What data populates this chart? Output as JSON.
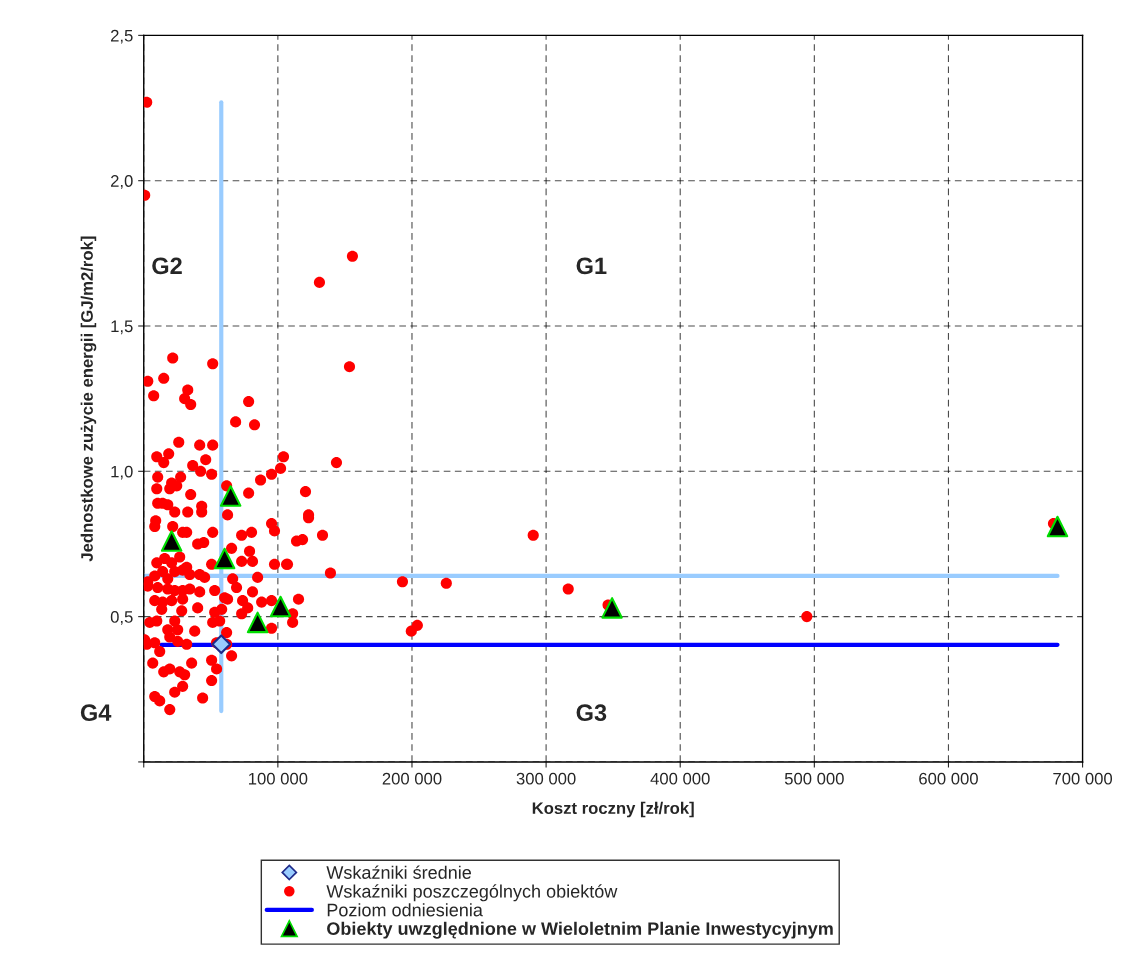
{
  "chart_data": {
    "type": "scatter",
    "xlabel": "Koszt roczny [zł/rok]",
    "ylabel": "Jednostkowe zużycie energii [GJ/m2/rok]",
    "xlim": [
      0,
      700000
    ],
    "xticks": [
      {
        "value": 0,
        "label": null
      },
      {
        "value": 100000,
        "label": "100 000"
      },
      {
        "value": 200000,
        "label": "200 000"
      },
      {
        "value": 300000,
        "label": "300 000"
      },
      {
        "value": 400000,
        "label": "400 000"
      },
      {
        "value": 500000,
        "label": "500 000"
      },
      {
        "value": 600000,
        "label": "600 000"
      },
      {
        "value": 700000,
        "label": "700 000"
      }
    ],
    "ylim": [
      0,
      2.5
    ],
    "yticks": [
      {
        "value": 0,
        "label": null
      },
      {
        "value": 0.5,
        "label": "0,5"
      },
      {
        "value": 1,
        "label": "1,0"
      },
      {
        "value": 1.5,
        "label": "1,5"
      },
      {
        "value": 2,
        "label": "2,0"
      },
      {
        "value": 2.5,
        "label": "2,5"
      }
    ],
    "grid": true,
    "legend": "bottom",
    "annotations": [
      "G1",
      "G2",
      "G3",
      "G4"
    ],
    "series": [
      {
        "type": "line",
        "color": "#99ccff",
        "marker": "none",
        "x": [
          57800,
          57800
        ],
        "values": [
          0.175,
          2.27
        ]
      },
      {
        "type": "line",
        "color": "#99ccff",
        "marker": "none",
        "x": [
          0,
          681300
        ],
        "values": [
          0.64,
          0.64
        ]
      },
      {
        "name": "Wskaźniki średnie",
        "color": "#99ccff",
        "marker": "diamond",
        "x": [
          57800
        ],
        "values": [
          0.405
        ]
      },
      {
        "name": "Wskaźniki poszczególnych obiektów",
        "color": "#ff0000",
        "marker": "circle",
        "x": [
          2200,
          700,
          155600,
          131000,
          153400,
          143700,
          133300,
          139200,
          290400,
          192900,
          225600,
          316500,
          199500,
          204000,
          494400,
          346200,
          678300,
          104200,
          102000,
          120600,
          122900,
          122900,
          113900,
          118400,
          106500,
          111000,
          111000,
          21600,
          51400,
          3000,
          14900,
          32800,
          7400,
          30500,
          35000,
          78200,
          68500,
          82600,
          26100,
          41700,
          51400,
          9700,
          18600,
          14900,
          46200,
          36500,
          42400,
          50600,
          95300,
          87100,
          10400,
          27500,
          20800,
          24600,
          9700,
          19400,
          35000,
          78200,
          61800,
          10400,
          14100,
          17900,
          23100,
          32800,
          43200,
          43200,
          62500,
          8900,
          8200,
          51400,
          95300,
          73000,
          80400,
          29000,
          32000,
          21600,
          97500,
          40200,
          44700,
          65500,
          78900,
          73000,
          81100,
          97500,
          107200,
          9700,
          15600,
          20800,
          26800,
          32000,
          14100,
          23100,
          29000,
          34300,
          8200,
          3000,
          17900,
          41700,
          45400,
          50600,
          84900,
          66300,
          69200,
          3000,
          10400,
          17900,
          23100,
          29000,
          34300,
          41700,
          52900,
          81100,
          8200,
          14100,
          20800,
          29000,
          40200,
          60300,
          62500,
          73700,
          87900,
          95300,
          115400,
          13400,
          28300,
          52900,
          58100,
          73000,
          77500,
          4500,
          9700,
          23100,
          51400,
          56600,
          95300,
          17900,
          25300,
          38000,
          61800,
          700,
          2200,
          8200,
          19400,
          25300,
          32000,
          11900,
          54300,
          61800,
          6700,
          19400,
          26800,
          30500,
          35700,
          50600,
          65500,
          54300,
          50600,
          29000,
          23100,
          8200,
          11900,
          19400,
          43900,
          14900
        ],
        "values": [
          2.27,
          1.95,
          1.74,
          1.65,
          1.36,
          1.03,
          0.78,
          0.65,
          0.78,
          0.62,
          0.615,
          0.595,
          0.45,
          0.47,
          0.5,
          0.54,
          0.82,
          1.05,
          1.01,
          0.93,
          0.85,
          0.84,
          0.76,
          0.765,
          0.68,
          0.51,
          0.48,
          1.39,
          1.37,
          1.31,
          1.32,
          1.28,
          1.26,
          1.25,
          1.23,
          1.24,
          1.17,
          1.16,
          1.1,
          1.09,
          1.09,
          1.05,
          1.06,
          1.03,
          1.04,
          1.02,
          1.0,
          0.99,
          0.99,
          0.97,
          0.98,
          0.98,
          0.96,
          0.95,
          0.94,
          0.94,
          0.92,
          0.925,
          0.95,
          0.89,
          0.89,
          0.885,
          0.86,
          0.86,
          0.88,
          0.86,
          0.85,
          0.83,
          0.81,
          0.79,
          0.82,
          0.78,
          0.79,
          0.79,
          0.79,
          0.81,
          0.795,
          0.75,
          0.755,
          0.735,
          0.725,
          0.69,
          0.69,
          0.68,
          0.68,
          0.685,
          0.7,
          0.685,
          0.705,
          0.67,
          0.655,
          0.655,
          0.66,
          0.645,
          0.64,
          0.62,
          0.63,
          0.645,
          0.635,
          0.68,
          0.635,
          0.63,
          0.6,
          0.605,
          0.6,
          0.595,
          0.59,
          0.59,
          0.595,
          0.585,
          0.59,
          0.585,
          0.555,
          0.55,
          0.555,
          0.56,
          0.53,
          0.565,
          0.56,
          0.555,
          0.55,
          0.555,
          0.56,
          0.525,
          0.52,
          0.515,
          0.525,
          0.51,
          0.53,
          0.48,
          0.485,
          0.485,
          0.48,
          0.485,
          0.46,
          0.455,
          0.455,
          0.45,
          0.445,
          0.42,
          0.405,
          0.41,
          0.43,
          0.415,
          0.405,
          0.38,
          0.41,
          0.405,
          0.34,
          0.32,
          0.31,
          0.3,
          0.34,
          0.35,
          0.365,
          0.32,
          0.28,
          0.26,
          0.24,
          0.225,
          0.21,
          0.18,
          0.22,
          0.31
        ]
      },
      {
        "type": "line",
        "name": "Poziom odniesienia",
        "color": "#0000ff",
        "marker": "none",
        "x": [
          13200,
          681300
        ],
        "values": [
          0.403,
          0.403
        ]
      },
      {
        "name": "Obiekty uwzględnione w Wieloletnim Planie Inwestycyjnym",
        "color": "#000000",
        "marker": "triangle",
        "x": [
          20800,
          64800,
          60300,
          84900,
          102000,
          349200,
          681300
        ],
        "values": [
          0.76,
          0.915,
          0.7,
          0.48,
          0.535,
          0.53,
          0.81
        ]
      }
    ]
  }
}
